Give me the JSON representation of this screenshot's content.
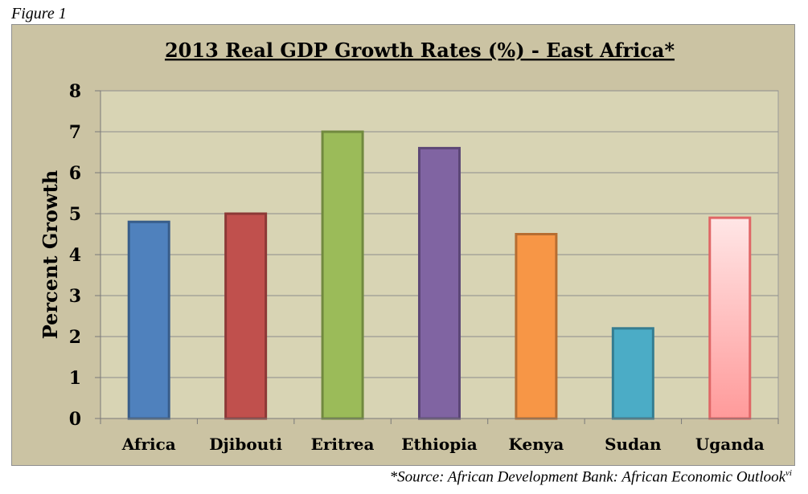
{
  "figure_label": "Figure 1",
  "source_note": "*Source: African Development Bank: African Economic Outlook",
  "source_superscript": "vi",
  "colors": {
    "panel_bg": "#cbc3a3",
    "plot_bg": "#d8d4b4",
    "gridline": "#8c8c8c"
  },
  "chart_data": {
    "type": "bar",
    "title": "2013 Real GDP Growth Rates (%) - East Africa*",
    "xlabel": "",
    "ylabel": "Percent Growth",
    "ylim": [
      0,
      8
    ],
    "yticks": [
      0,
      1,
      2,
      3,
      4,
      5,
      6,
      7,
      8
    ],
    "grid": true,
    "categories": [
      "Africa",
      "Djibouti",
      "Eritrea",
      "Ethiopia",
      "Kenya",
      "Sudan",
      "Uganda"
    ],
    "values": [
      4.8,
      5.0,
      7.0,
      6.6,
      4.5,
      2.2,
      4.9
    ],
    "bar_colors": [
      {
        "fill": "#4f81bd",
        "stroke": "#385d8a"
      },
      {
        "fill": "#c0504d",
        "stroke": "#8c3836"
      },
      {
        "fill": "#9bbb59",
        "stroke": "#71893f"
      },
      {
        "fill": "#8064a2",
        "stroke": "#5c4776"
      },
      {
        "fill": "#f79646",
        "stroke": "#b66d31"
      },
      {
        "fill": "#4bacc6",
        "stroke": "#357d91"
      },
      {
        "fill": "#ffb3b3",
        "stroke": "#e06666"
      }
    ]
  }
}
